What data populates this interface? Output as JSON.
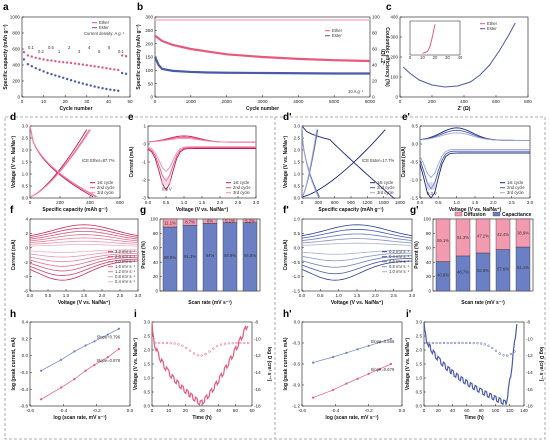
{
  "colors": {
    "pink": "#e8587a",
    "blue": "#4a5aa8",
    "pink_light": "#f7b3c3",
    "blue_light": "#a9b4e2",
    "dashed_border": "#999999"
  },
  "chart_data": [
    {
      "panel": "a",
      "type": "scatter",
      "xlabel": "Cycle number",
      "ylabel": "Specific capacity (mAh g⁻¹)",
      "xlim": [
        0,
        55
      ],
      "ylim": [
        0,
        1000
      ],
      "xticks": [
        "0",
        "10",
        "20",
        "30",
        "40",
        "50"
      ],
      "yticks": [
        "0",
        "200",
        "400",
        "600",
        "800",
        "1000"
      ],
      "legend": [
        "Ether",
        "Ester"
      ],
      "annotation": "Current density: A g⁻¹",
      "rate_labels": [
        "0.1",
        "0.2",
        "0.5",
        "1",
        "2",
        "3",
        "4",
        "5",
        "6",
        "0.1"
      ],
      "series": [
        {
          "name": "Ether",
          "x": [
            1,
            3,
            5,
            7,
            9,
            11,
            13,
            15,
            17,
            19,
            21,
            23,
            25,
            27,
            29,
            31,
            33,
            35,
            37,
            39,
            41,
            43,
            45,
            47,
            49,
            51,
            53
          ],
          "y": [
            560,
            520,
            505,
            490,
            480,
            470,
            460,
            455,
            448,
            440,
            435,
            430,
            425,
            418,
            412,
            405,
            398,
            390,
            383,
            376,
            368,
            360,
            352,
            345,
            338,
            520,
            510
          ]
        },
        {
          "name": "Ester",
          "x": [
            1,
            3,
            5,
            7,
            9,
            11,
            13,
            15,
            17,
            19,
            21,
            23,
            25,
            27,
            29,
            31,
            33,
            35,
            37,
            39,
            41,
            43,
            45,
            47,
            49,
            51,
            53
          ],
          "y": [
            470,
            410,
            385,
            360,
            340,
            320,
            300,
            285,
            270,
            255,
            240,
            225,
            210,
            195,
            180,
            168,
            155,
            143,
            130,
            120,
            110,
            100,
            92,
            85,
            78,
            300,
            290
          ]
        }
      ]
    },
    {
      "panel": "b",
      "type": "scatter",
      "xlabel": "Cycle number",
      "ylabel": "Specific capacity (mAh g⁻¹)",
      "y2label": "Coulombic efficiency (%)",
      "xlim": [
        0,
        6000
      ],
      "ylim": [
        0,
        300
      ],
      "y2lim": [
        0,
        100
      ],
      "xticks": [
        "0",
        "1000",
        "2000",
        "3000",
        "4000",
        "5000",
        "6000"
      ],
      "yticks": [
        "0",
        "50",
        "100",
        "150",
        "200",
        "250",
        "300"
      ],
      "y2ticks": [
        "0",
        "20",
        "40",
        "60",
        "80",
        "100"
      ],
      "legend": [
        "Ether",
        "Ester"
      ],
      "annotation": "10 A g⁻¹",
      "series": [
        {
          "name": "Ether",
          "x": [
            0,
            200,
            500,
            1000,
            1500,
            2000,
            3000,
            4000,
            5000,
            6000
          ],
          "y": [
            230,
            210,
            195,
            180,
            170,
            160,
            150,
            143,
            138,
            135
          ]
        },
        {
          "name": "Ester",
          "x": [
            0,
            100,
            200,
            500,
            1000,
            1500,
            2000,
            3000,
            4000,
            5000,
            6000
          ],
          "y": [
            150,
            120,
            105,
            98,
            94,
            92,
            91,
            90,
            89,
            88,
            88
          ]
        }
      ]
    },
    {
      "panel": "c",
      "type": "line",
      "xlabel": "Z' (Ω)",
      "ylabel": "-Z'' (Ω)",
      "xlim": [
        0,
        800
      ],
      "ylim": [
        0,
        400
      ],
      "xticks": [
        "0",
        "200",
        "400",
        "600",
        "800"
      ],
      "yticks": [
        "0",
        "100",
        "200",
        "300",
        "400"
      ],
      "legend": [
        "Ether",
        "Ester"
      ],
      "series": [
        {
          "name": "Ester",
          "x": [
            20,
            60,
            120,
            200,
            280,
            360,
            440,
            500,
            560,
            620,
            680,
            720
          ],
          "y": [
            150,
            120,
            85,
            60,
            50,
            55,
            75,
            110,
            160,
            230,
            310,
            370
          ]
        }
      ],
      "inset": {
        "xticks": [
          "0",
          "10",
          "20",
          "30",
          "40"
        ],
        "yticks": [
          "0",
          "10",
          "20",
          "30",
          "40"
        ],
        "series": [
          {
            "name": "Ether",
            "x": [
              10,
              14,
              16,
              18,
              20
            ],
            "y": [
              2,
              4,
              10,
              22,
              36
            ]
          }
        ]
      }
    },
    {
      "panel": "d",
      "type": "line",
      "xlabel": "Specific capacity (mAh g⁻¹)",
      "ylabel": "Voltage (V vs. Na/Na⁺)",
      "xlim": [
        0,
        600
      ],
      "ylim": [
        0,
        3.0
      ],
      "xticks": [
        "0",
        "200",
        "400",
        "600"
      ],
      "yticks": [
        "0.0",
        "0.5",
        "1.0",
        "1.5",
        "2.0",
        "2.5",
        "3.0"
      ],
      "annotation": "ICE Ether=87.7%",
      "legend": [
        "1st cycle",
        "2nd cycle",
        "3rd cycle"
      ]
    },
    {
      "panel": "e",
      "type": "line",
      "xlabel": "Voltage (V vs. Na/Na⁺)",
      "ylabel": "Current (mA)",
      "xlim": [
        0,
        3.0
      ],
      "ylim": [
        -3,
        1
      ],
      "xticks": [
        "0.0",
        "0.5",
        "1.0",
        "1.5",
        "2.0",
        "2.5",
        "3.0"
      ],
      "yticks": [
        "-3",
        "-2",
        "-1",
        "0",
        "1"
      ],
      "annotation": "0.5 V",
      "legend": [
        "1st cycle",
        "2nd cycle",
        "3rd cycle"
      ]
    },
    {
      "panel": "d'",
      "type": "line",
      "xlabel": "Specific capacity (mAh g⁻¹)",
      "ylabel": "Voltage (V vs. Na/Na⁺)",
      "xlim": [
        0,
        1800
      ],
      "ylim": [
        0,
        3.0
      ],
      "xticks": [
        "0",
        "300",
        "600",
        "900",
        "1200",
        "1500",
        "1800"
      ],
      "yticks": [
        "0.0",
        "0.5",
        "1.0",
        "1.5",
        "2.0",
        "2.5",
        "3.0"
      ],
      "annotation": "ICE Ester=17.7%",
      "legend": [
        "1st cycle",
        "2nd cycle",
        "3rd cycle"
      ]
    },
    {
      "panel": "e'",
      "type": "line",
      "xlabel": "Voltage (V vs. Na/Na⁺)",
      "ylabel": "Current (mA)",
      "xlim": [
        0,
        3.0
      ],
      "ylim": [
        -1.5,
        0.5
      ],
      "xticks": [
        "0.0",
        "0.5",
        "1.0",
        "1.5",
        "2.0",
        "2.5",
        "3.0"
      ],
      "yticks": [
        "-1.5",
        "-1.0",
        "-0.5",
        "0.0",
        "0.5"
      ],
      "annotation": "0.3 V",
      "legend": [
        "1st cycle",
        "2nd cycle",
        "3rd cycle"
      ]
    },
    {
      "panel": "f",
      "type": "line",
      "xlabel": "Voltage (V vs. Na/Na⁺)",
      "ylabel": "Current (mA)",
      "xlim": [
        0,
        3.0
      ],
      "ylim": [
        -6,
        4
      ],
      "xticks": [
        "0.0",
        "0.5",
        "1.0",
        "1.5",
        "2.0",
        "2.5",
        "3.0"
      ],
      "yticks": [
        "-6",
        "-4",
        "-2",
        "0",
        "2",
        "4"
      ],
      "legend": [
        "3.2 mV s⁻¹",
        "2.6 mV s⁻¹",
        "2.0 mV s⁻¹",
        "1.6 mV s⁻¹",
        "1.2 mV s⁻¹",
        "0.8 mV s⁻¹",
        "0.4 mV s⁻¹"
      ]
    },
    {
      "panel": "g",
      "type": "bar",
      "xlabel": "Scan rate (mV s⁻¹)",
      "ylabel": "Percent (%)",
      "categories": [
        "0.2",
        "0.4",
        "0.6",
        "0.8",
        "1"
      ],
      "ylim": [
        0,
        100
      ],
      "yticks": [
        "0",
        "20",
        "40",
        "60",
        "80",
        "100"
      ],
      "series": [
        {
          "name": "Diffusion",
          "values": [
            11.1,
            8.7,
            6,
            5.1,
            5.2
          ]
        },
        {
          "name": "Capacitance",
          "values": [
            88.9,
            91.3,
            94,
            94.9,
            94.8
          ]
        }
      ],
      "labels": {
        "Diffusion": [
          "11.1%",
          "8.7%",
          "6%",
          "5.1%",
          "5.2%"
        ],
        "Capacitance": [
          "88.9%",
          "91.3%",
          "94%",
          "94.9%",
          "94.8%"
        ]
      }
    },
    {
      "panel": "f'",
      "type": "line",
      "xlabel": "Voltage (V vs. Na/Na⁺)",
      "ylabel": "Current (mA)",
      "xlim": [
        0,
        3.0
      ],
      "ylim": [
        -1.5,
        1.0
      ],
      "xticks": [
        "0.0",
        "0.5",
        "1.0",
        "1.5",
        "2.0",
        "2.5",
        "3.0"
      ],
      "yticks": [
        "-1.5",
        "-1.0",
        "-0.5",
        "0.0",
        "0.5",
        "1.0"
      ],
      "legend": [
        "0.2 mV s⁻¹",
        "0.4 mV s⁻¹",
        "0.6 mV s⁻¹",
        "0.8 mV s⁻¹",
        "1.0 mV s⁻¹"
      ]
    },
    {
      "panel": "g'",
      "type": "bar",
      "xlabel": "Scan rate (mV s⁻¹)",
      "ylabel": "Percent (%)",
      "categories": [
        "0.2",
        "0.4",
        "0.6",
        "0.8",
        "1"
      ],
      "ylim": [
        0,
        100
      ],
      "yticks": [
        "0",
        "20",
        "40",
        "60",
        "80",
        "100"
      ],
      "series": [
        {
          "name": "Diffusion",
          "values": [
            59.1,
            51.3,
            47.2,
            42.4,
            38.9
          ]
        },
        {
          "name": "Capacitance",
          "values": [
            40.9,
            48.7,
            52.8,
            57.6,
            61.1
          ]
        }
      ],
      "labels": {
        "Diffusion": [
          "59.1%",
          "51.3%",
          "47.2%",
          "42.4%",
          "38.9%"
        ],
        "Capacitance": [
          "40.9%",
          "48.7%",
          "52.8%",
          "57.6%",
          "61.1%"
        ]
      },
      "legend": [
        "Diffusion",
        "Capacitance"
      ]
    },
    {
      "panel": "h",
      "type": "scatter",
      "xlabel": "log (scan rate, mV s⁻¹)",
      "ylabel": "log (peak current, mA)",
      "xlim": [
        -0.8,
        0.1
      ],
      "ylim": [
        -0.6,
        0.4
      ],
      "xticks": [
        "-0.6",
        "-0.4",
        "-0.2",
        "0.0"
      ],
      "yticks": [
        "-0.6",
        "-0.4",
        "-0.2",
        "0.0",
        "0.2",
        "0.4"
      ],
      "series": [
        {
          "name": "Slope=0.796",
          "x": [
            -0.7,
            -0.52,
            -0.4,
            -0.3,
            -0.22,
            -0.1,
            0
          ],
          "y": [
            -0.18,
            -0.05,
            0.05,
            0.12,
            0.17,
            0.25,
            0.32
          ]
        },
        {
          "name": "Slope=0.878",
          "x": [
            -0.7,
            -0.52,
            -0.4,
            -0.3,
            -0.22,
            -0.1,
            0
          ],
          "y": [
            -0.52,
            -0.38,
            -0.28,
            -0.18,
            -0.11,
            -0.02,
            0.08
          ]
        }
      ]
    },
    {
      "panel": "i",
      "type": "line",
      "xlabel": "Time (h)",
      "ylabel": "Voltage (V vs. Na/Na⁺)",
      "y2label": "log D (cm² s⁻¹)",
      "xlim": [
        0,
        60
      ],
      "ylim": [
        0,
        3.0
      ],
      "y2lim": [
        -18,
        -8
      ],
      "xticks": [
        "0",
        "10",
        "20",
        "30",
        "40",
        "50",
        "60"
      ],
      "yticks": [
        "0.0",
        "0.5",
        "1.0",
        "1.5",
        "2.0",
        "2.5",
        "3.0"
      ],
      "y2ticks": [
        "-18",
        "-16",
        "-14",
        "-12",
        "-10",
        "-8"
      ]
    },
    {
      "panel": "h'",
      "type": "scatter",
      "xlabel": "log (scan rate, mV s⁻¹)",
      "ylabel": "log (peak current, mA)",
      "xlim": [
        -0.8,
        0.1
      ],
      "ylim": [
        -1.2,
        0.0
      ],
      "xticks": [
        "-0.6",
        "-0.4",
        "-0.2",
        "0.0"
      ],
      "yticks": [
        "-1.2",
        "-0.9",
        "-0.6",
        "-0.3",
        "0.0"
      ],
      "series": [
        {
          "name": "Slope=0.566",
          "x": [
            -0.7,
            -0.52,
            -0.4,
            -0.3,
            -0.2,
            -0.1,
            0
          ],
          "y": [
            -0.58,
            -0.5,
            -0.44,
            -0.39,
            -0.34,
            -0.29,
            -0.24
          ]
        },
        {
          "name": "Slope=0.679",
          "x": [
            -0.7,
            -0.52,
            -0.4,
            -0.3,
            -0.2,
            -0.1,
            0
          ],
          "y": [
            -1.08,
            -0.97,
            -0.88,
            -0.81,
            -0.74,
            -0.67,
            -0.6
          ]
        }
      ]
    },
    {
      "panel": "i'",
      "type": "line",
      "xlabel": "Time (h)",
      "ylabel": "Voltage (V vs. Na/Na⁺)",
      "y2label": "log D (cm² s⁻¹)",
      "xlim": [
        0,
        140
      ],
      "ylim": [
        0,
        3.0
      ],
      "y2lim": [
        -18,
        -8
      ],
      "xticks": [
        "0",
        "20",
        "40",
        "60",
        "80",
        "100",
        "120",
        "140"
      ],
      "yticks": [
        "0.0",
        "0.5",
        "1.0",
        "1.5",
        "2.0",
        "2.5",
        "3.0"
      ],
      "y2ticks": [
        "-18",
        "-16",
        "-14",
        "-12",
        "-10",
        "-8"
      ]
    }
  ]
}
